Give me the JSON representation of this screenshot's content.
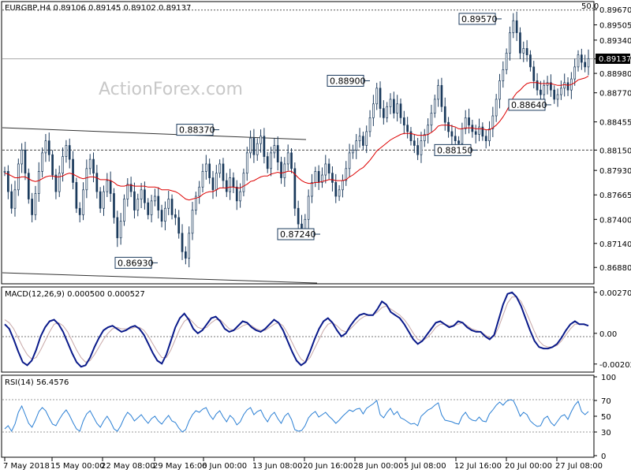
{
  "chart_data": [
    {
      "type": "candlestick",
      "header": "EURGBP,H4  0.89106 0.89145 0.89102 0.89137",
      "watermark": "ActionForex.com",
      "ylim": [
        0.8672,
        0.8974
      ],
      "y_ticks": [
        "0.89670",
        "0.89505",
        "0.89340",
        "0.89137",
        "0.88980",
        "0.88770",
        "0.88455",
        "0.88150",
        "0.87930",
        "0.87665",
        "0.87400",
        "0.87140",
        "0.86880"
      ],
      "current_price": "0.89137",
      "fib_label": "50.0",
      "fib_level": 0.89665,
      "horizontal_level": 0.8815,
      "annotations": [
        {
          "text": "0.89570",
          "x": "20 Jul 2018",
          "y": 0.8957
        },
        {
          "text": "0.88900",
          "x": "28 Jun 2018",
          "y": 0.889
        },
        {
          "text": "0.88640",
          "x": "24 Jul 2018",
          "y": 0.8864
        },
        {
          "text": "0.88370",
          "x": "6 Jun 2018",
          "y": 0.8837
        },
        {
          "text": "0.88150",
          "x": "10 Jul 2018",
          "y": 0.8815
        },
        {
          "text": "0.87240",
          "x": "14 Jun 2018",
          "y": 0.8724
        },
        {
          "text": "0.86930",
          "x": "29 May 2018",
          "y": 0.8693
        }
      ],
      "series": [
        {
          "values": [
            0.8792,
            0.877,
            0.8752,
            0.8772,
            0.88,
            0.8815,
            0.879,
            0.8762,
            0.8745,
            0.8768,
            0.8792,
            0.8812,
            0.8825,
            0.881,
            0.8788,
            0.877,
            0.879,
            0.8808,
            0.882,
            0.8805,
            0.878,
            0.8752,
            0.8745,
            0.8772,
            0.8795,
            0.8805,
            0.879,
            0.877,
            0.8752,
            0.877,
            0.8782,
            0.8768,
            0.8742,
            0.872,
            0.8738,
            0.8762,
            0.8778,
            0.877,
            0.875,
            0.8762,
            0.8772,
            0.8758,
            0.8745,
            0.876,
            0.8765,
            0.875,
            0.8738,
            0.8752,
            0.8762,
            0.8745,
            0.8742,
            0.8725,
            0.8705,
            0.8698,
            0.8725,
            0.875,
            0.8765,
            0.8775,
            0.8792,
            0.88,
            0.8785,
            0.8772,
            0.879,
            0.88,
            0.8782,
            0.877,
            0.8785,
            0.8775,
            0.876,
            0.877,
            0.879,
            0.8812,
            0.8828,
            0.881,
            0.8822,
            0.883,
            0.8808,
            0.8795,
            0.8812,
            0.882,
            0.8802,
            0.8785,
            0.88,
            0.8812,
            0.8795,
            0.8752,
            0.8735,
            0.8728,
            0.874,
            0.8765,
            0.878,
            0.8792,
            0.878,
            0.8788,
            0.88,
            0.879,
            0.878,
            0.8765,
            0.8772,
            0.8782,
            0.8795,
            0.8812,
            0.8815,
            0.8825,
            0.883,
            0.882,
            0.8835,
            0.885,
            0.8865,
            0.8882,
            0.886,
            0.885,
            0.8862,
            0.887,
            0.8855,
            0.8865,
            0.885,
            0.8842,
            0.8835,
            0.8825,
            0.882,
            0.881,
            0.8825,
            0.8832,
            0.8842,
            0.8855,
            0.887,
            0.8885,
            0.8862,
            0.8845,
            0.8835,
            0.883,
            0.8825,
            0.8822,
            0.8838,
            0.885,
            0.8842,
            0.8835,
            0.8832,
            0.884,
            0.883,
            0.8825,
            0.8838,
            0.8852,
            0.887,
            0.889,
            0.8902,
            0.892,
            0.8942,
            0.8955,
            0.8942,
            0.892,
            0.8925,
            0.8918,
            0.8905,
            0.889,
            0.888,
            0.8875,
            0.8885,
            0.8888,
            0.888,
            0.887,
            0.8875,
            0.8882,
            0.8888,
            0.888,
            0.8892,
            0.8905,
            0.8918,
            0.891,
            0.8905,
            0.8914
          ]
        },
        {
          "name": "",
          "values": [
            0.879,
            0.8789,
            0.8787,
            0.8785,
            0.8785,
            0.8786,
            0.8786,
            0.8784,
            0.8782,
            0.8781,
            0.8782,
            0.8784,
            0.8786,
            0.8787,
            0.8787,
            0.8786,
            0.8786,
            0.8787,
            0.8789,
            0.879,
            0.8789,
            0.8787,
            0.8785,
            0.8784,
            0.8785,
            0.8786,
            0.8786,
            0.8785,
            0.8783,
            0.8783,
            0.8783,
            0.8782,
            0.878,
            0.8777,
            0.8776,
            0.8776,
            0.8777,
            0.8777,
            0.8776,
            0.8776,
            0.8776,
            0.8776,
            0.8775,
            0.8775,
            0.8775,
            0.8774,
            0.8772,
            0.8772,
            0.8772,
            0.8771,
            0.877,
            0.8768,
            0.8765,
            0.8762,
            0.8761,
            0.8762,
            0.8763,
            0.8764,
            0.8767,
            0.8769,
            0.877,
            0.877,
            0.8772,
            0.8774,
            0.8774,
            0.8774,
            0.8775,
            0.8775,
            0.8774,
            0.8774,
            0.8776,
            0.8778,
            0.8781,
            0.8782,
            0.8784,
            0.8786,
            0.8787,
            0.8787,
            0.8789,
            0.879,
            0.8791,
            0.879,
            0.8791,
            0.8792,
            0.8792,
            0.8789,
            0.8785,
            0.8782,
            0.878,
            0.8779,
            0.8779,
            0.878,
            0.878,
            0.8781,
            0.8782,
            0.8783,
            0.8783,
            0.8782,
            0.8782,
            0.8782,
            0.8783,
            0.8786,
            0.8788,
            0.8791,
            0.8794,
            0.8796,
            0.88,
            0.8804,
            0.8809,
            0.8814,
            0.8817,
            0.882,
            0.8823,
            0.8826,
            0.8828,
            0.883,
            0.8832,
            0.8833,
            0.8833,
            0.8833,
            0.8832,
            0.8831,
            0.8831,
            0.8831,
            0.8832,
            0.8834,
            0.8837,
            0.8841,
            0.8842,
            0.8842,
            0.8842,
            0.8841,
            0.884,
            0.8838,
            0.8838,
            0.8839,
            0.8839,
            0.8839,
            0.8838,
            0.8838,
            0.8838,
            0.8837,
            0.8837,
            0.8839,
            0.8842,
            0.8846,
            0.8851,
            0.8857,
            0.8864,
            0.8872,
            0.8877,
            0.888,
            0.8884,
            0.8887,
            0.8888,
            0.8888,
            0.8888,
            0.8887,
            0.8887,
            0.8887,
            0.8887,
            0.8886,
            0.8885,
            0.8885,
            0.8886,
            0.8885,
            0.8886,
            0.8888,
            0.8891,
            0.8892,
            0.8893,
            0.8895
          ]
        }
      ]
    },
    {
      "type": "line",
      "header": "MACD(12,26,9) 0.000500 0.000527",
      "y_ticks": [
        "0.002705",
        "0.00",
        "-0.002023"
      ],
      "ylim": [
        -0.00245,
        0.00285
      ],
      "series": [
        {
          "values": [
            0.0006,
            0.0003,
            -0.0004,
            -0.0012,
            -0.0019,
            -0.0021,
            -0.0018,
            -0.0011,
            -0.0002,
            0.0004,
            0.0008,
            0.0009,
            0.0006,
            0.0001,
            -0.0006,
            -0.0013,
            -0.0019,
            -0.0022,
            -0.0021,
            -0.0016,
            -0.0009,
            -0.0003,
            0.0002,
            0.0004,
            0.0005,
            0.0003,
            0.0001,
            0.0002,
            0.0004,
            0.0005,
            0.0003,
            -0.0001,
            -0.0007,
            -0.0013,
            -0.0018,
            -0.002,
            -0.0014,
            -0.0005,
            0.0004,
            0.001,
            0.0013,
            0.0009,
            0.0003,
            0.0,
            0.0002,
            0.0006,
            0.001,
            0.0011,
            0.0008,
            0.0003,
            0.0001,
            0.0002,
            0.0005,
            0.0008,
            0.0007,
            0.0004,
            0.0002,
            0.0001,
            0.0003,
            0.0006,
            0.0009,
            0.0007,
            0.0002,
            -0.0005,
            -0.0012,
            -0.0018,
            -0.0021,
            -0.0019,
            -0.0012,
            -0.0004,
            0.0003,
            0.0008,
            0.001,
            0.0007,
            0.0002,
            -0.0002,
            0.0,
            0.0005,
            0.0009,
            0.0012,
            0.0013,
            0.0012,
            0.0012,
            0.0016,
            0.0021,
            0.0019,
            0.0014,
            0.0012,
            0.001,
            0.0006,
            0.0001,
            -0.0004,
            -0.0007,
            -0.0005,
            -0.0001,
            0.0003,
            0.0007,
            0.0008,
            0.0006,
            0.0004,
            0.0005,
            0.0008,
            0.0007,
            0.0004,
            0.0002,
            0.0001,
            0.0001,
            -0.0002,
            -0.0004,
            -0.0001,
            0.0009,
            0.0019,
            0.0026,
            0.0027,
            0.0024,
            0.0018,
            0.001,
            0.0002,
            -0.0005,
            -0.0009,
            -0.001,
            -0.001,
            -0.0009,
            -0.0007,
            -0.0003,
            0.0002,
            0.0006,
            0.0008,
            0.0006,
            0.0006,
            0.0005
          ]
        },
        {
          "values": [
            0.0009,
            0.0007,
            0.0003,
            -0.0003,
            -0.0009,
            -0.0014,
            -0.0017,
            -0.0016,
            -0.0011,
            -0.0005,
            0.0001,
            0.0006,
            0.0007,
            0.0005,
            0.0001,
            -0.0005,
            -0.0011,
            -0.0016,
            -0.0019,
            -0.0018,
            -0.0014,
            -0.0009,
            -0.0004,
            0.0,
            0.0003,
            0.0004,
            0.0003,
            0.0003,
            0.0003,
            0.0004,
            0.0004,
            0.0002,
            -0.0002,
            -0.0007,
            -0.0012,
            -0.0016,
            -0.0016,
            -0.0011,
            -0.0004,
            0.0003,
            0.0008,
            0.001,
            0.0007,
            0.0004,
            0.0003,
            0.0004,
            0.0007,
            0.0009,
            0.0009,
            0.0006,
            0.0003,
            0.0002,
            0.0003,
            0.0005,
            0.0006,
            0.0005,
            0.0003,
            0.0002,
            0.0002,
            0.0004,
            0.0006,
            0.0007,
            0.0005,
            0.0,
            -0.0006,
            -0.0012,
            -0.0017,
            -0.0019,
            -0.0016,
            -0.001,
            -0.0004,
            0.0002,
            0.0006,
            0.0007,
            0.0005,
            0.0002,
            0.0001,
            0.0003,
            0.0006,
            0.0009,
            0.0011,
            0.0012,
            0.0012,
            0.0014,
            0.0017,
            0.0018,
            0.0016,
            0.0014,
            0.0012,
            0.0009,
            0.0005,
            0.0,
            -0.0004,
            -0.0005,
            -0.0003,
            0.0,
            0.0004,
            0.0006,
            0.0006,
            0.0005,
            0.0005,
            0.0006,
            0.0007,
            0.0005,
            0.0003,
            0.0002,
            0.0001,
            -0.0001,
            -0.0003,
            -0.0002,
            0.0004,
            0.0012,
            0.002,
            0.0024,
            0.0024,
            0.0021,
            0.0015,
            0.0008,
            0.0001,
            -0.0005,
            -0.0008,
            -0.0009,
            -0.0009,
            -0.0008,
            -0.0005,
            -0.0001,
            0.0003,
            0.0006,
            0.0006,
            0.0006,
            0.0005
          ]
        }
      ]
    },
    {
      "type": "line",
      "header": "RSI(14) 56.4576",
      "y_ticks": [
        "100",
        "70",
        "50",
        "30",
        "0"
      ],
      "ylim": [
        0,
        100
      ],
      "series": [
        {
          "values": [
            34,
            38,
            31,
            40,
            55,
            63,
            52,
            41,
            36,
            45,
            56,
            61,
            57,
            48,
            40,
            38,
            46,
            53,
            58,
            51,
            42,
            34,
            31,
            44,
            53,
            57,
            49,
            41,
            36,
            44,
            50,
            43,
            34,
            31,
            38,
            48,
            55,
            51,
            44,
            48,
            52,
            46,
            41,
            47,
            50,
            44,
            40,
            46,
            51,
            44,
            42,
            35,
            30,
            33,
            44,
            52,
            57,
            55,
            59,
            61,
            52,
            46,
            53,
            57,
            49,
            43,
            51,
            47,
            39,
            43,
            52,
            58,
            61,
            52,
            56,
            58,
            49,
            43,
            51,
            55,
            47,
            41,
            50,
            54,
            46,
            33,
            31,
            32,
            38,
            48,
            53,
            56,
            49,
            52,
            55,
            50,
            46,
            41,
            45,
            50,
            54,
            58,
            56,
            59,
            60,
            53,
            60,
            63,
            66,
            70,
            52,
            48,
            55,
            60,
            52,
            56,
            48,
            46,
            43,
            40,
            41,
            38,
            50,
            54,
            58,
            60,
            64,
            67,
            52,
            45,
            44,
            43,
            41,
            40,
            50,
            55,
            48,
            45,
            44,
            49,
            44,
            43,
            53,
            58,
            64,
            68,
            64,
            69,
            71,
            70,
            61,
            50,
            55,
            52,
            44,
            40,
            37,
            38,
            47,
            50,
            42,
            38,
            44,
            50,
            52,
            46,
            56,
            64,
            69,
            56,
            52,
            56
          ]
        }
      ]
    },
    {
      "type": "axis",
      "x_ticks": [
        "7 May 2018",
        "15 May 00:00",
        "22 May 08:00",
        "29 May 16:00",
        "6 Jun 00:00",
        "13 Jun 08:00",
        "20 Jun 16:00",
        "28 Jun 00:00",
        "5 Jul 08:00",
        "12 Jul 16:00",
        "20 Jul 00:00",
        "27 Jul 08:00"
      ]
    }
  ]
}
